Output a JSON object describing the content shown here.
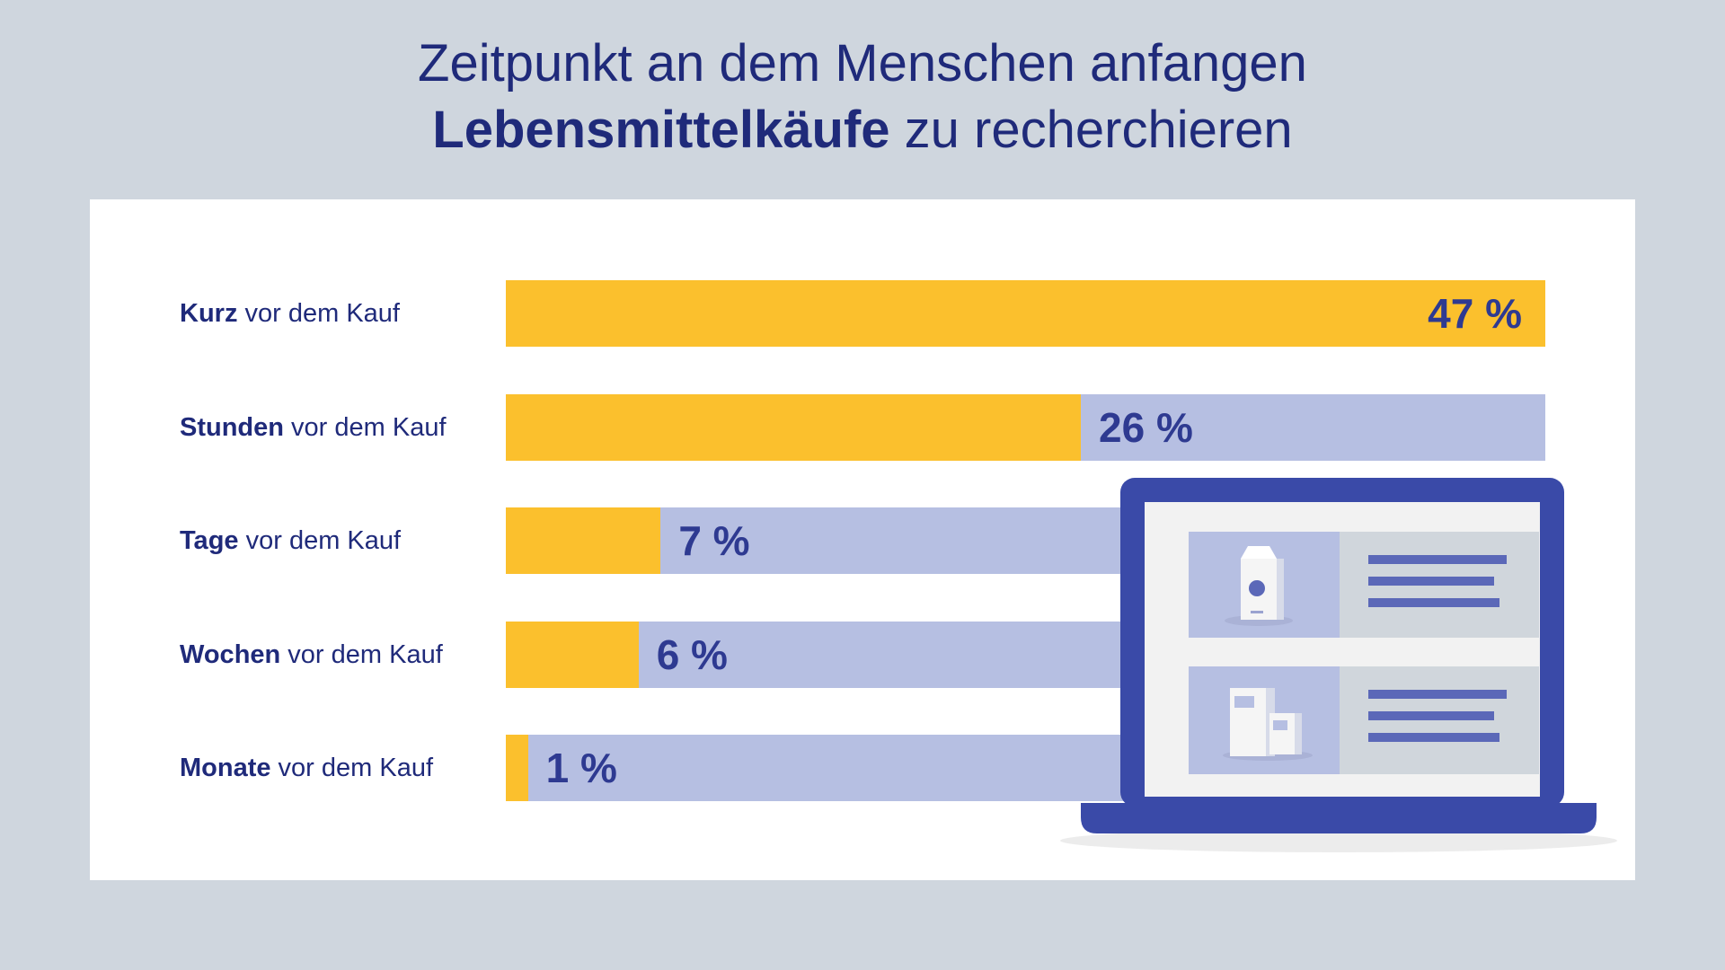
{
  "title": {
    "line1": "Zeitpunkt an dem Menschen anfangen",
    "line2_bold": "Lebensmittelkäufe",
    "line2_rest": " zu recherchieren"
  },
  "colors": {
    "background": "#cfd6de",
    "card": "#ffffff",
    "bar_fill": "#fbc02d",
    "bar_track": "#b6bfe2",
    "text": "#1f2a7a",
    "laptop": "#3a4aa8"
  },
  "chart_data": {
    "type": "bar",
    "orientation": "horizontal",
    "title": "Zeitpunkt an dem Menschen anfangen Lebensmittelkäufe zu recherchieren",
    "xlim": [
      0,
      47
    ],
    "categories": [
      {
        "bold": "Kurz",
        "rest": " vor dem Kauf"
      },
      {
        "bold": "Stunden",
        "rest": " vor dem Kauf"
      },
      {
        "bold": "Tage",
        "rest": " vor dem Kauf"
      },
      {
        "bold": "Wochen",
        "rest": " vor dem Kauf"
      },
      {
        "bold": "Monate",
        "rest": " vor dem Kauf"
      }
    ],
    "values": [
      47,
      26,
      7,
      6,
      1
    ],
    "value_labels": [
      "47 %",
      "26 %",
      "7 %",
      "6 %",
      "1 %"
    ]
  },
  "illustration": {
    "icon": "laptop-with-grocery-products-icon"
  }
}
